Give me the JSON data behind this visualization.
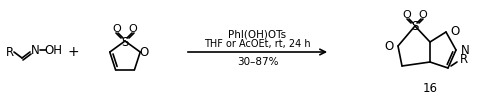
{
  "background_color": "#ffffff",
  "fig_width": 4.96,
  "fig_height": 0.98,
  "dpi": 100,
  "arrow_text_top": "PhI(OH)OTs",
  "arrow_text_mid": "THF or AcOEt, rt, 24 h",
  "arrow_text_bot": "30–87%",
  "product_label": "16",
  "font_color": "#000000",
  "lw": 1.2
}
